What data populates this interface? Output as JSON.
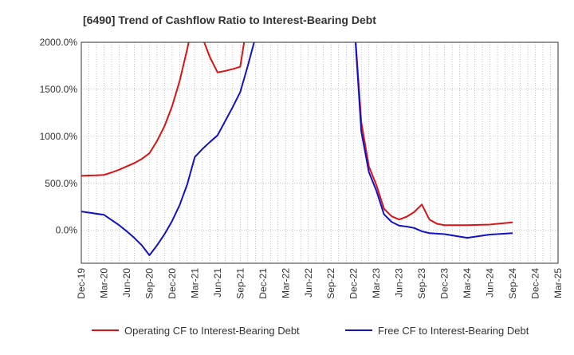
{
  "chart_data": {
    "type": "line",
    "title": "[6490]  Trend of Cashflow Ratio to Interest-Bearing Debt",
    "xlabel": "",
    "ylabel": "",
    "ylim": [
      -350,
      2000
    ],
    "y_ticks": [
      0,
      500,
      1000,
      1500,
      2000
    ],
    "y_tick_labels": [
      "0.0%",
      "500.0%",
      "1000.0%",
      "1500.0%",
      "2000.0%"
    ],
    "x_range": [
      "2019-12",
      "2025-03"
    ],
    "x_tick_labels": [
      "Dec-19",
      "Mar-20",
      "Jun-20",
      "Sep-20",
      "Dec-20",
      "Mar-21",
      "Jun-21",
      "Sep-21",
      "Dec-21",
      "Mar-22",
      "Jun-22",
      "Sep-22",
      "Dec-22",
      "Mar-23",
      "Jun-23",
      "Sep-23",
      "Dec-23",
      "Mar-24",
      "Jun-24",
      "Sep-24",
      "Dec-24",
      "Mar-25"
    ],
    "grid": true,
    "legend_position": "bottom",
    "series": [
      {
        "name": "Operating CF to Interest-Bearing Debt",
        "color": "#dd1111",
        "points": [
          [
            "Dec-19",
            580
          ],
          [
            "Jan-20",
            583
          ],
          [
            "Feb-20",
            585
          ],
          [
            "Mar-20",
            590
          ],
          [
            "Apr-20",
            615
          ],
          [
            "May-20",
            645
          ],
          [
            "Jun-20",
            680
          ],
          [
            "Jul-20",
            715
          ],
          [
            "Aug-20",
            760
          ],
          [
            "Sep-20",
            820
          ],
          [
            "Oct-20",
            950
          ],
          [
            "Nov-20",
            1110
          ],
          [
            "Dec-20",
            1320
          ],
          [
            "Jan-21",
            1590
          ],
          [
            "Feb-21",
            1930
          ],
          [
            "Mar-21",
            2300
          ],
          [
            "Apr-21",
            2050
          ],
          [
            "May-21",
            1840
          ],
          [
            "Jun-21",
            1680
          ],
          [
            "Jul-21",
            1695
          ],
          [
            "Aug-21",
            1715
          ],
          [
            "Sep-21",
            1740
          ],
          [
            "Oct-21",
            2250
          ],
          [
            "Dec-22",
            2300
          ],
          [
            "Jan-23",
            1150
          ],
          [
            "Feb-23",
            680
          ],
          [
            "Mar-23",
            480
          ],
          [
            "Apr-23",
            230
          ],
          [
            "May-23",
            150
          ],
          [
            "Jun-23",
            115
          ],
          [
            "Jul-23",
            145
          ],
          [
            "Aug-23",
            195
          ],
          [
            "Sep-23",
            275
          ],
          [
            "Oct-23",
            115
          ],
          [
            "Nov-23",
            70
          ],
          [
            "Dec-23",
            55
          ],
          [
            "Mar-24",
            55
          ],
          [
            "Jun-24",
            62
          ],
          [
            "Sep-24",
            85
          ]
        ]
      },
      {
        "name": "Free CF to Interest-Bearing Debt",
        "color": "#1111cc",
        "points": [
          [
            "Dec-19",
            200
          ],
          [
            "Mar-20",
            165
          ],
          [
            "Apr-20",
            110
          ],
          [
            "May-20",
            55
          ],
          [
            "Jun-20",
            -10
          ],
          [
            "Jul-20",
            -80
          ],
          [
            "Aug-20",
            -160
          ],
          [
            "Sep-20",
            -265
          ],
          [
            "Oct-20",
            -160
          ],
          [
            "Nov-20",
            -40
          ],
          [
            "Dec-20",
            100
          ],
          [
            "Jan-21",
            270
          ],
          [
            "Feb-21",
            490
          ],
          [
            "Mar-21",
            780
          ],
          [
            "Apr-21",
            865
          ],
          [
            "May-21",
            940
          ],
          [
            "Jun-21",
            1010
          ],
          [
            "Jul-21",
            1160
          ],
          [
            "Aug-21",
            1310
          ],
          [
            "Sep-21",
            1470
          ],
          [
            "Oct-21",
            1750
          ],
          [
            "Nov-21",
            2050
          ],
          [
            "Dec-21",
            2300
          ],
          [
            "Dec-22",
            2300
          ],
          [
            "Jan-23",
            1050
          ],
          [
            "Feb-23",
            620
          ],
          [
            "Mar-23",
            420
          ],
          [
            "Apr-23",
            170
          ],
          [
            "May-23",
            90
          ],
          [
            "Jun-23",
            50
          ],
          [
            "Jul-23",
            40
          ],
          [
            "Aug-23",
            25
          ],
          [
            "Sep-23",
            -10
          ],
          [
            "Oct-23",
            -30
          ],
          [
            "Nov-23",
            -35
          ],
          [
            "Dec-23",
            -40
          ],
          [
            "Mar-24",
            -80
          ],
          [
            "Jun-24",
            -45
          ],
          [
            "Sep-24",
            -30
          ]
        ]
      }
    ]
  }
}
